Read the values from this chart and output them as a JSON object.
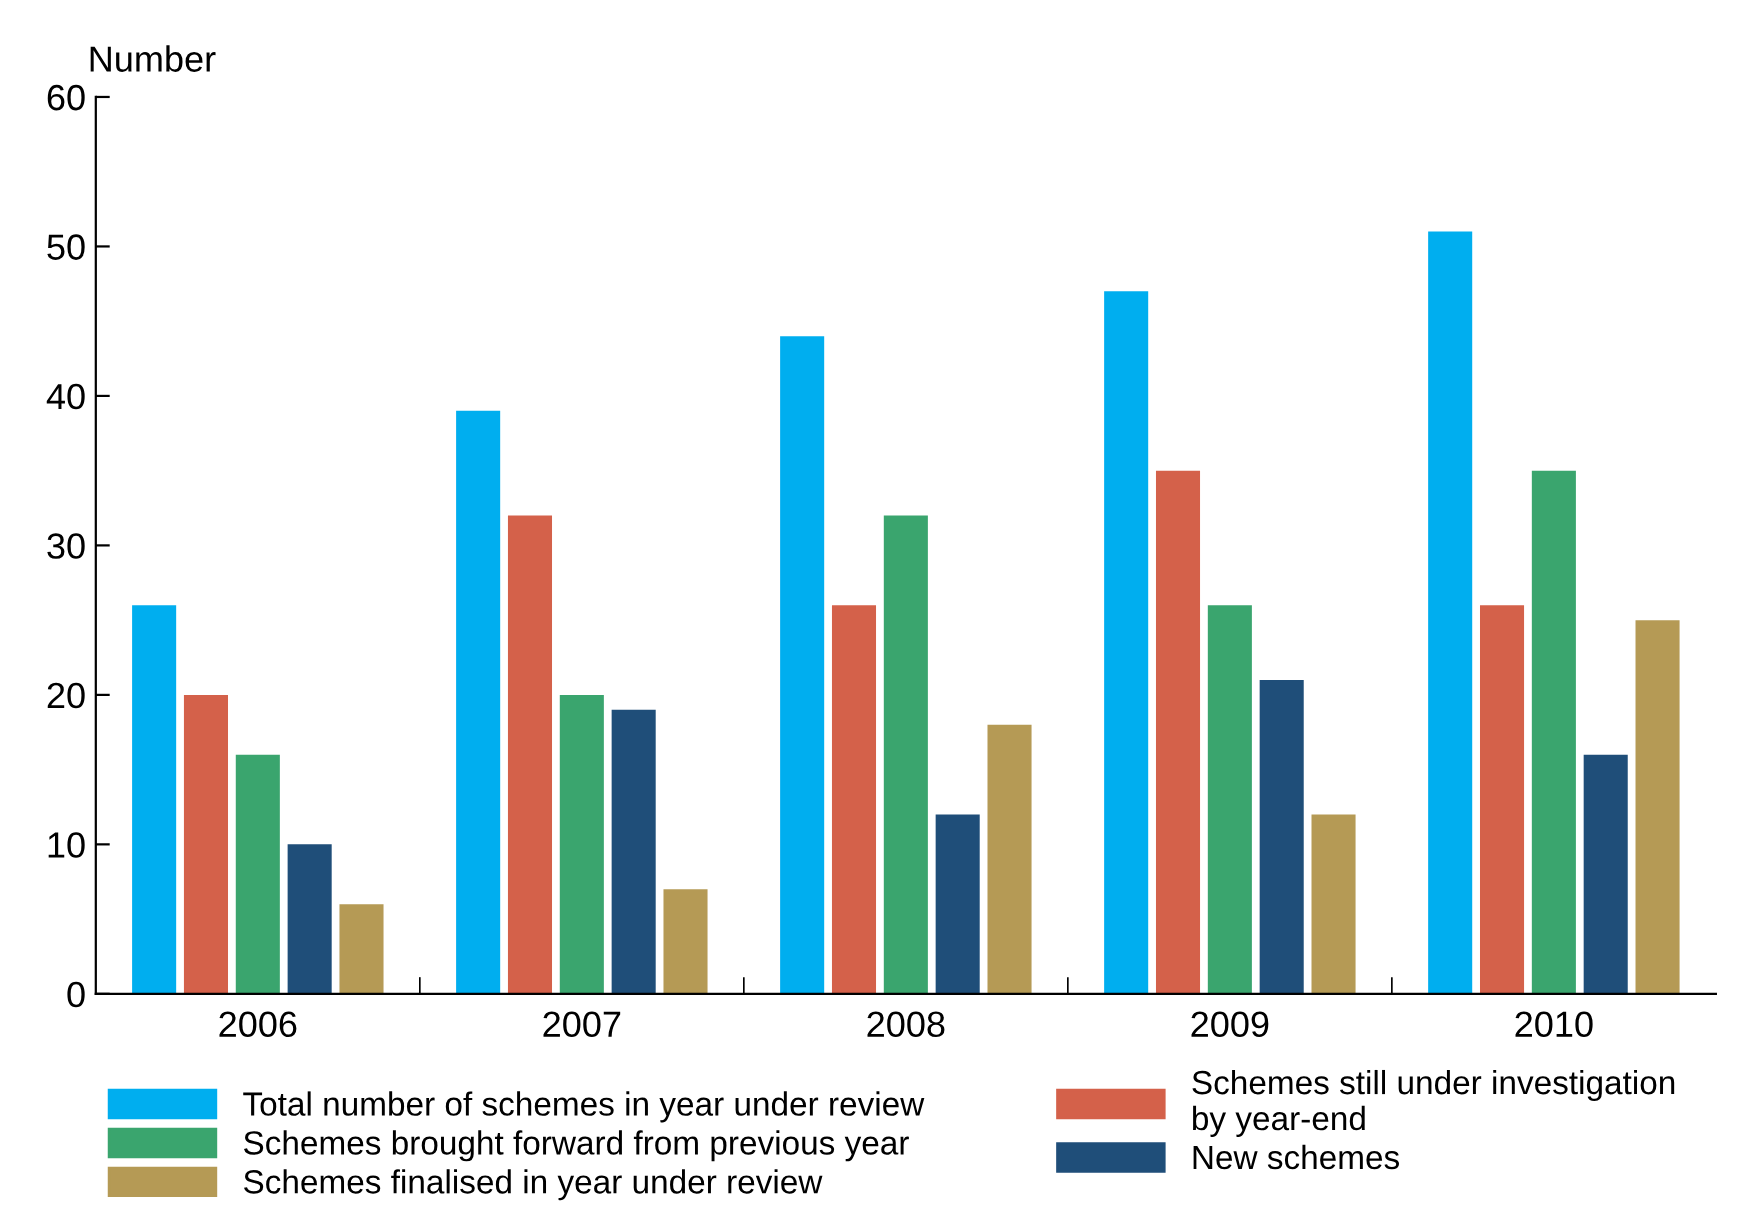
{
  "chart_data": {
    "type": "bar",
    "ylabel": "Number",
    "categories": [
      "2006",
      "2007",
      "2008",
      "2009",
      "2010"
    ],
    "series": [
      {
        "name": "Total number of schemes in year under review",
        "color": "#00aeef",
        "values": [
          26,
          39,
          44,
          47,
          51
        ]
      },
      {
        "name": "Schemes still under investigation\nby year-end",
        "color": "#d4614a",
        "values": [
          20,
          32,
          26,
          35,
          26
        ]
      },
      {
        "name": "Schemes brought forward from previous year",
        "color": "#3aa56e",
        "values": [
          16,
          20,
          32,
          26,
          35
        ]
      },
      {
        "name": "New schemes",
        "color": "#1f4e79",
        "values": [
          10,
          19,
          12,
          21,
          16
        ]
      },
      {
        "name": "Schemes finalised in year under review",
        "color": "#b59a55",
        "values": [
          6,
          7,
          18,
          12,
          25
        ]
      }
    ],
    "ylim": [
      0,
      60
    ],
    "yticks": [
      0,
      10,
      20,
      30,
      40,
      50,
      60
    ],
    "grid": false,
    "legend": "bottom"
  }
}
